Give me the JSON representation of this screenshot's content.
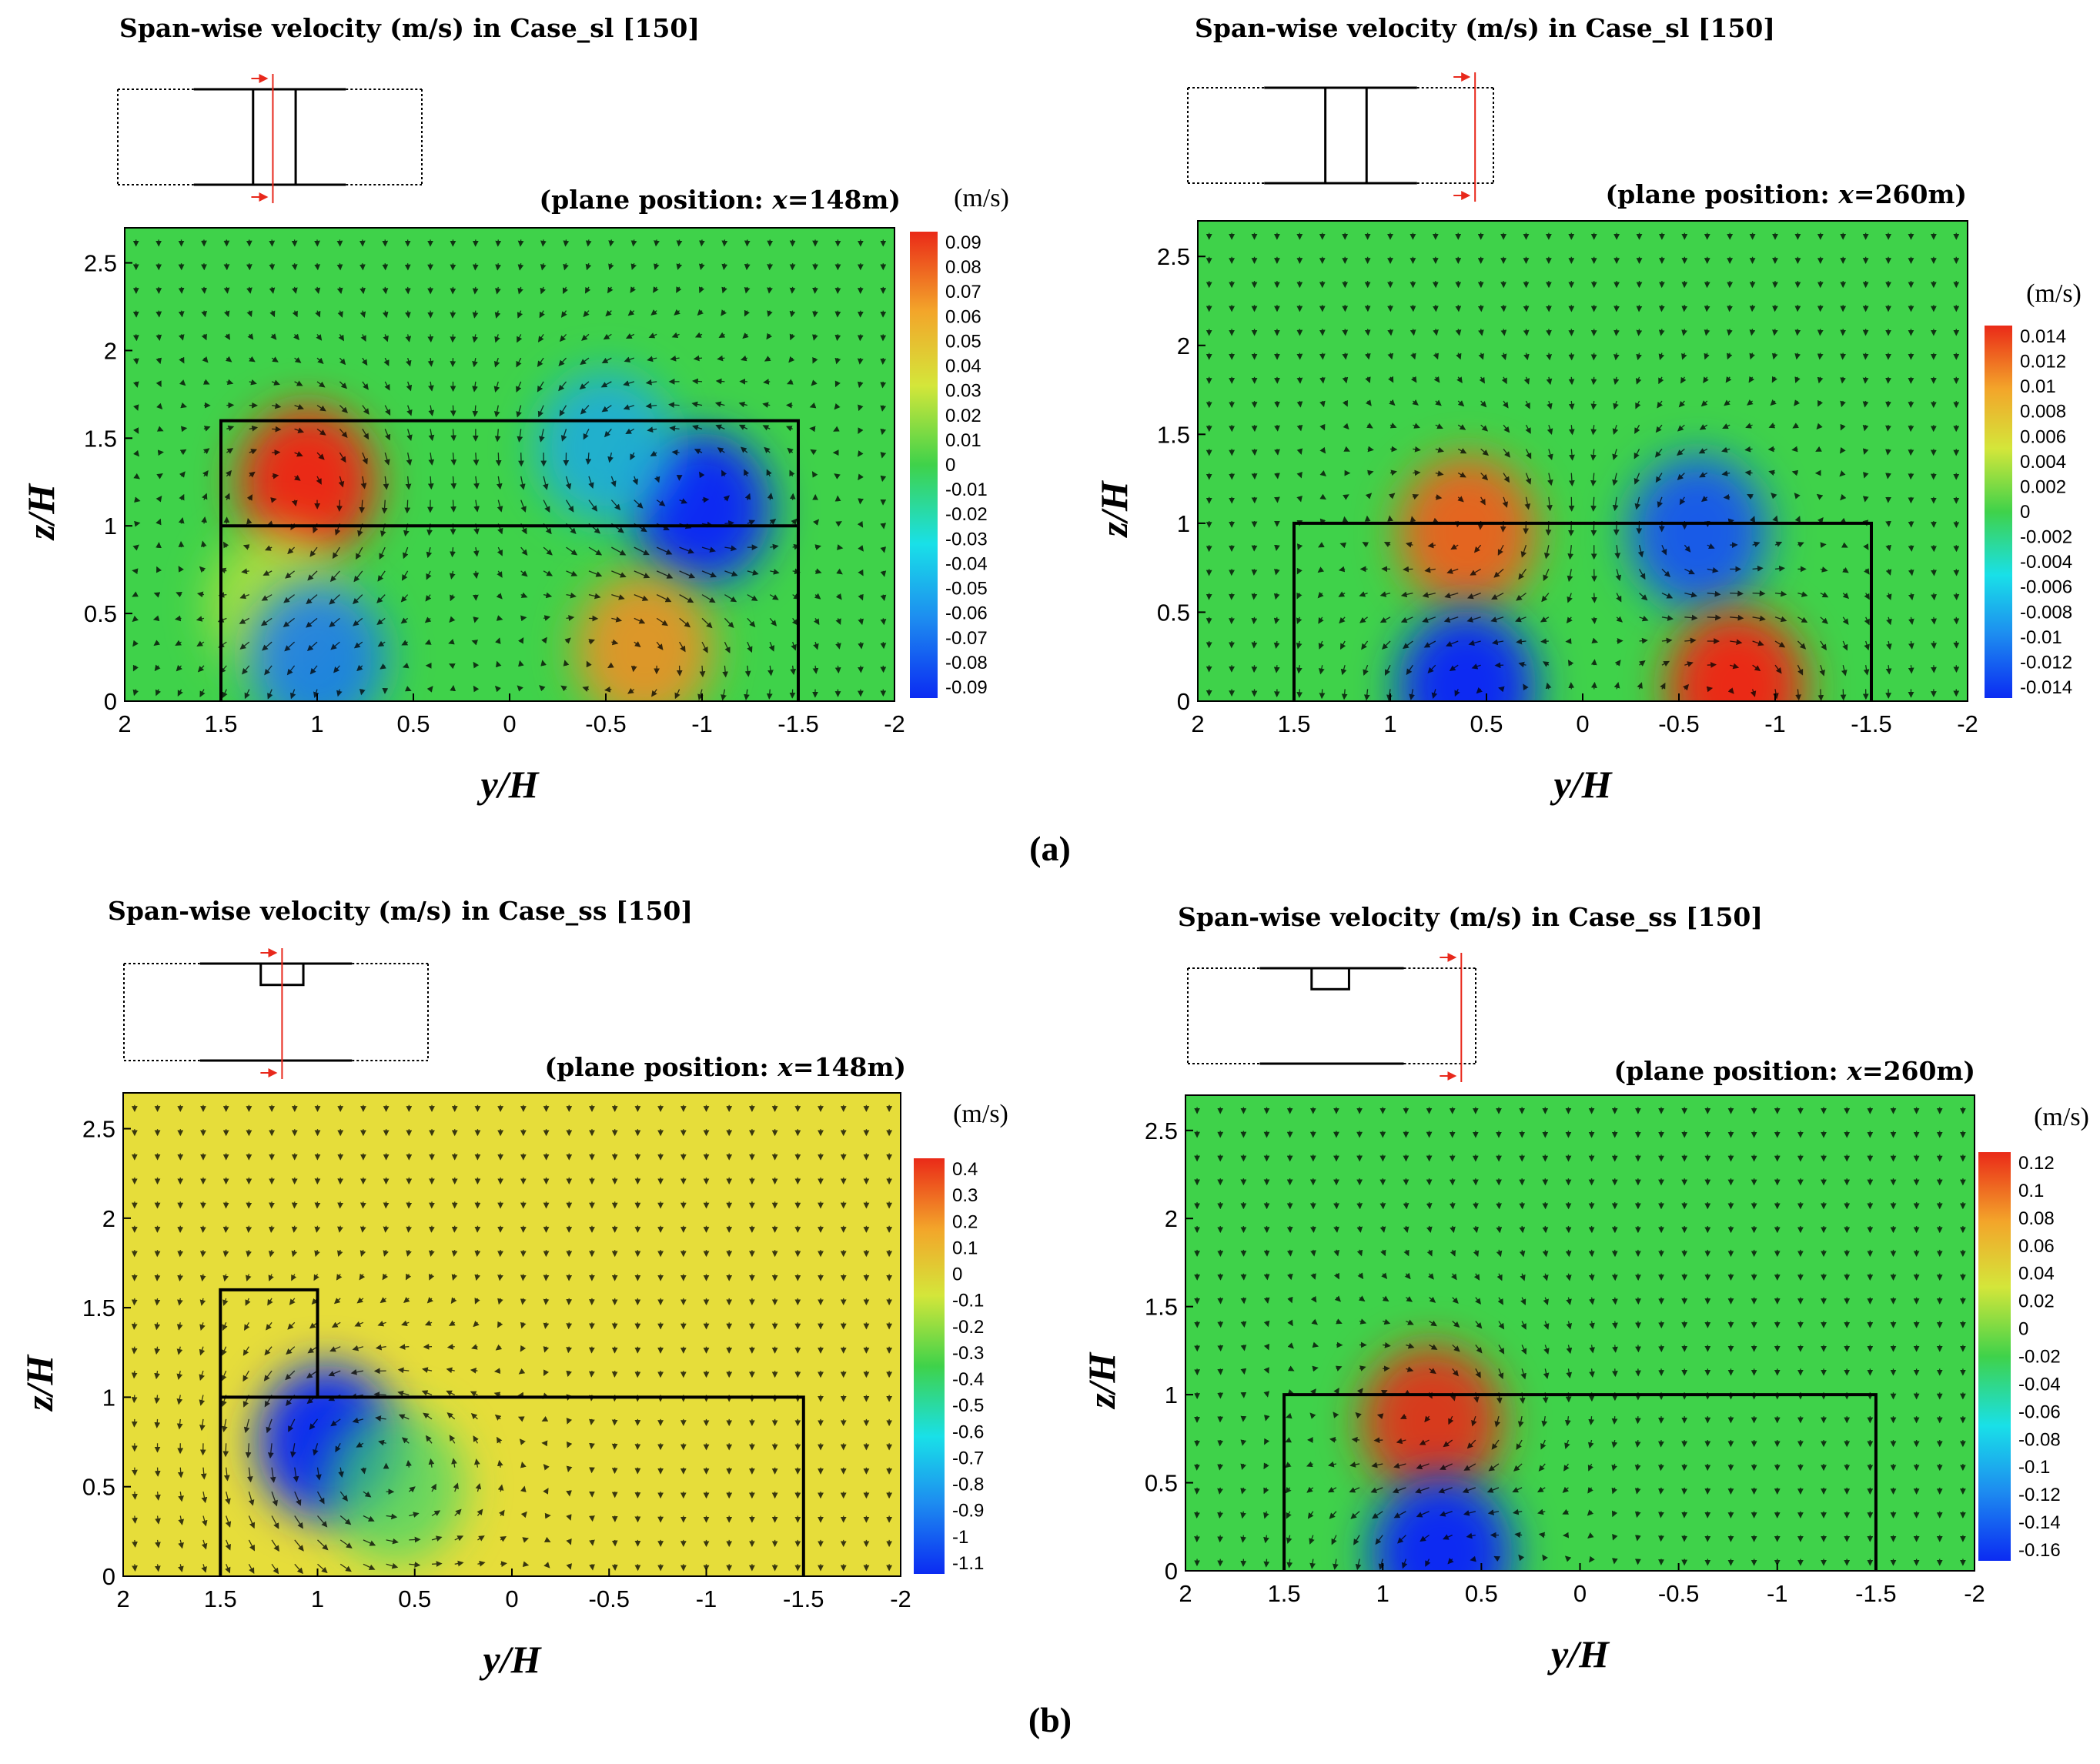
{
  "figure": {
    "label_a": "(a)",
    "label_b": "(b)"
  },
  "colors": {
    "field_green": "#3fd24a",
    "field_yellow": "#e6dd3a",
    "positive": "#e8391b",
    "negative": "#1a3fe0",
    "marker": "#e8281b"
  },
  "chart_data": [
    {
      "type": "heatmap",
      "title": "Span-wise velocity (m/s) in Case_sl [150]",
      "plane_prefix": "(plane position: ",
      "plane_var": "x",
      "plane_value": "=148m)",
      "xlabel_var": "y",
      "ylabel_var": "z",
      "axis_den": "/H",
      "x_ticks": [
        "2",
        "1.5",
        "1",
        "0.5",
        "0",
        "-0.5",
        "-1",
        "-1.5",
        "-2"
      ],
      "y_ticks": [
        "0",
        "0.5",
        "1",
        "1.5",
        "2",
        "2.5"
      ],
      "xlim": [
        2,
        -2
      ],
      "ylim": [
        0,
        2.7
      ],
      "colorbar_unit": "(m/s)",
      "colorbar_min": -0.09,
      "colorbar_max": 0.09,
      "colorbar_labels": [
        "0.09",
        "0.08",
        "0.07",
        "0.06",
        "0.05",
        "0.04",
        "0.03",
        "0.02",
        "0.01",
        "0",
        "-0.01",
        "-0.02",
        "-0.03",
        "-0.04",
        "-0.05",
        "-0.06",
        "-0.07",
        "-0.08",
        "-0.09"
      ],
      "building_outline": [
        [
          1.5,
          0
        ],
        [
          1.5,
          1.6
        ],
        [
          -1.5,
          1.6
        ],
        [
          -1.5,
          0
        ]
      ],
      "internal_line_z": 1.0,
      "internal_line_y": [
        1.5,
        -1.5
      ],
      "vortices": [
        {
          "y": 1.05,
          "z": 1.25,
          "value": 0.09
        },
        {
          "y": 1.2,
          "z": 0.55,
          "value": 0.03
        },
        {
          "y": -1.0,
          "z": 1.1,
          "value": -0.09
        },
        {
          "y": -0.5,
          "z": 1.45,
          "value": -0.05
        },
        {
          "y": 1.0,
          "z": 0.25,
          "value": -0.065
        },
        {
          "y": -0.7,
          "z": 0.3,
          "value": 0.065
        }
      ],
      "inset": "plan view, short box, measuring plane through box"
    },
    {
      "type": "heatmap",
      "title": "Span-wise velocity (m/s) in Case_sl [150]",
      "plane_prefix": "(plane position: ",
      "plane_var": "x",
      "plane_value": "=260m)",
      "xlabel_var": "y",
      "ylabel_var": "z",
      "axis_den": "/H",
      "x_ticks": [
        "2",
        "1.5",
        "1",
        "0.5",
        "0",
        "-0.5",
        "-1",
        "-1.5",
        "-2"
      ],
      "y_ticks": [
        "0",
        "0.5",
        "1",
        "1.5",
        "2",
        "2.5"
      ],
      "xlim": [
        2,
        -2
      ],
      "ylim": [
        0,
        2.7
      ],
      "colorbar_unit": "(m/s)",
      "colorbar_min": -0.014,
      "colorbar_max": 0.014,
      "colorbar_labels": [
        "0.014",
        "0.012",
        "0.01",
        "0.008",
        "0.006",
        "0.004",
        "0.002",
        "0",
        "-0.002",
        "-0.004",
        "-0.006",
        "-0.008",
        "-0.01",
        "-0.012",
        "-0.014"
      ],
      "building_outline": [
        [
          1.5,
          0
        ],
        [
          1.5,
          1.0
        ],
        [
          -1.5,
          1.0
        ],
        [
          -1.5,
          0
        ]
      ],
      "vortices": [
        {
          "y": 0.6,
          "z": 0.95,
          "value": 0.012
        },
        {
          "y": -0.6,
          "z": 0.95,
          "value": -0.012
        },
        {
          "y": 0.6,
          "z": 0.08,
          "value": -0.014
        },
        {
          "y": -0.8,
          "z": 0.08,
          "value": 0.014
        }
      ],
      "inset": "plan view, measuring plane downstream of box"
    },
    {
      "type": "heatmap",
      "title": "Span-wise velocity (m/s) in Case_ss [150]",
      "plane_prefix": "(plane position: ",
      "plane_var": "x",
      "plane_value": "=148m)",
      "xlabel_var": "y",
      "ylabel_var": "z",
      "axis_den": "/H",
      "x_ticks": [
        "2",
        "1.5",
        "1",
        "0.5",
        "0",
        "-0.5",
        "-1",
        "-1.5",
        "-2"
      ],
      "y_ticks": [
        "0",
        "0.5",
        "1",
        "1.5",
        "2",
        "2.5"
      ],
      "xlim": [
        2,
        -2
      ],
      "ylim": [
        0,
        2.7
      ],
      "colorbar_unit": "(m/s)",
      "colorbar_min": -1.1,
      "colorbar_max": 0.4,
      "colorbar_labels": [
        "0.4",
        "0.3",
        "0.2",
        "0.1",
        "0",
        "-0.1",
        "-0.2",
        "-0.3",
        "-0.4",
        "-0.5",
        "-0.6",
        "-0.7",
        "-0.8",
        "-0.9",
        "-1",
        "-1.1"
      ],
      "building_outline": [
        [
          1.5,
          0
        ],
        [
          1.5,
          1.6
        ],
        [
          1.0,
          1.6
        ],
        [
          1.0,
          1.0
        ],
        [
          -1.5,
          1.0
        ],
        [
          -1.5,
          0
        ]
      ],
      "internal_line_z": 1.0,
      "internal_line_y": [
        1.5,
        1.0
      ],
      "vortices": [
        {
          "y": 0.95,
          "z": 0.75,
          "value": -1.1
        },
        {
          "y": 0.6,
          "z": 0.5,
          "value": -0.4
        }
      ],
      "inset": "plan view, small tower on podium, plane through tower"
    },
    {
      "type": "heatmap",
      "title": "Span-wise velocity (m/s) in Case_ss [150]",
      "plane_prefix": "(plane position: ",
      "plane_var": "x",
      "plane_value": "=260m)",
      "xlabel_var": "y",
      "ylabel_var": "z",
      "axis_den": "/H",
      "x_ticks": [
        "2",
        "1.5",
        "1",
        "0.5",
        "0",
        "-0.5",
        "-1",
        "-1.5",
        "-2"
      ],
      "y_ticks": [
        "0",
        "0.5",
        "1",
        "1.5",
        "2",
        "2.5"
      ],
      "xlim": [
        2,
        -2
      ],
      "ylim": [
        0,
        2.7
      ],
      "colorbar_unit": "(m/s)",
      "colorbar_min": -0.16,
      "colorbar_max": 0.12,
      "colorbar_labels": [
        "0.12",
        "0.1",
        "0.08",
        "0.06",
        "0.04",
        "0.02",
        "0",
        "-0.02",
        "-0.04",
        "-0.06",
        "-0.08",
        "-0.1",
        "-0.12",
        "-0.14",
        "-0.16"
      ],
      "building_outline": [
        [
          1.5,
          0
        ],
        [
          1.5,
          1.0
        ],
        [
          -1.5,
          1.0
        ],
        [
          -1.5,
          0
        ]
      ],
      "vortices": [
        {
          "y": 0.75,
          "z": 0.85,
          "value": 0.12
        },
        {
          "y": 0.7,
          "z": 0.1,
          "value": -0.16
        }
      ],
      "inset": "plan view, plane downstream of tower"
    }
  ]
}
